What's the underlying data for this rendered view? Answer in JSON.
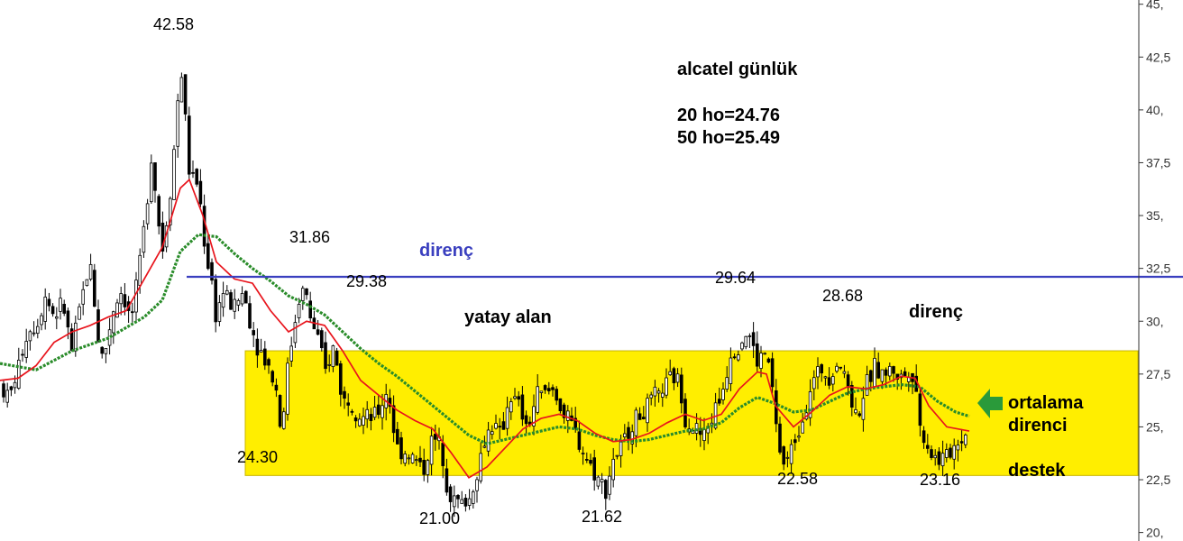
{
  "chart_data": {
    "type": "candlestick",
    "title": "alcatel günlük",
    "info_lines": [
      "20 ho=24.76",
      "50 ho=25.49"
    ],
    "y_axis": {
      "position": "right",
      "ylim": [
        19.6,
        45.2
      ],
      "ticks": [
        20,
        22.5,
        25,
        27.5,
        30,
        32.5,
        35,
        37.5,
        40,
        42.5,
        45
      ],
      "tick_labels": [
        "20,",
        "22,5",
        "25,",
        "27,5",
        "30,",
        "32,5",
        "35,",
        "37,5",
        "40,",
        "42,5",
        "45,"
      ]
    },
    "grid": false,
    "resistance_line": {
      "value": 32.1,
      "label": "direnç",
      "color": "#3a3fbf"
    },
    "range_box": {
      "top": 28.6,
      "bottom": 22.7,
      "label": "yatay alan",
      "color": "#ffee00"
    },
    "moving_averages": [
      {
        "name": "20 ho",
        "color": "#e8141c",
        "points": [
          [
            0,
            27.2
          ],
          [
            20,
            27.3
          ],
          [
            40,
            27.9
          ],
          [
            60,
            29.0
          ],
          [
            80,
            29.5
          ],
          [
            100,
            29.8
          ],
          [
            120,
            30.2
          ],
          [
            140,
            30.5
          ],
          [
            160,
            32.0
          ],
          [
            180,
            33.5
          ],
          [
            200,
            36.3
          ],
          [
            210,
            36.7
          ],
          [
            225,
            35.0
          ],
          [
            240,
            32.8
          ],
          [
            260,
            32.0
          ],
          [
            280,
            31.8
          ],
          [
            300,
            30.5
          ],
          [
            320,
            29.5
          ],
          [
            340,
            30.0
          ],
          [
            360,
            29.8
          ],
          [
            380,
            28.6
          ],
          [
            400,
            27.2
          ],
          [
            420,
            26.5
          ],
          [
            440,
            25.8
          ],
          [
            460,
            25.3
          ],
          [
            480,
            24.9
          ],
          [
            500,
            23.8
          ],
          [
            520,
            22.6
          ],
          [
            540,
            23.1
          ],
          [
            560,
            24.0
          ],
          [
            580,
            24.9
          ],
          [
            600,
            25.4
          ],
          [
            620,
            25.6
          ],
          [
            640,
            25.3
          ],
          [
            660,
            24.7
          ],
          [
            680,
            24.3
          ],
          [
            700,
            24.4
          ],
          [
            720,
            24.7
          ],
          [
            740,
            25.2
          ],
          [
            760,
            25.6
          ],
          [
            780,
            25.3
          ],
          [
            800,
            25.6
          ],
          [
            820,
            26.8
          ],
          [
            840,
            27.6
          ],
          [
            850,
            27.5
          ],
          [
            860,
            26.0
          ],
          [
            880,
            25.0
          ],
          [
            900,
            25.7
          ],
          [
            920,
            26.5
          ],
          [
            940,
            26.9
          ],
          [
            960,
            26.8
          ],
          [
            980,
            27.0
          ],
          [
            1000,
            27.4
          ],
          [
            1015,
            27.3
          ],
          [
            1030,
            26.0
          ],
          [
            1050,
            25.0
          ],
          [
            1075,
            24.8
          ]
        ]
      },
      {
        "name": "50 ho",
        "color": "#2a8c2a",
        "points": [
          [
            0,
            28.0
          ],
          [
            40,
            27.7
          ],
          [
            80,
            28.6
          ],
          [
            120,
            29.2
          ],
          [
            160,
            30.2
          ],
          [
            180,
            31.0
          ],
          [
            200,
            33.3
          ],
          [
            220,
            34.1
          ],
          [
            240,
            34.0
          ],
          [
            260,
            33.2
          ],
          [
            280,
            32.5
          ],
          [
            300,
            31.9
          ],
          [
            320,
            31.2
          ],
          [
            340,
            30.8
          ],
          [
            360,
            30.3
          ],
          [
            380,
            29.5
          ],
          [
            400,
            28.7
          ],
          [
            420,
            28.0
          ],
          [
            440,
            27.4
          ],
          [
            460,
            26.7
          ],
          [
            480,
            26.0
          ],
          [
            500,
            25.3
          ],
          [
            520,
            24.6
          ],
          [
            540,
            24.2
          ],
          [
            560,
            24.4
          ],
          [
            580,
            24.6
          ],
          [
            600,
            24.8
          ],
          [
            620,
            25.0
          ],
          [
            640,
            24.9
          ],
          [
            660,
            24.6
          ],
          [
            680,
            24.4
          ],
          [
            700,
            24.3
          ],
          [
            720,
            24.4
          ],
          [
            740,
            24.6
          ],
          [
            760,
            24.8
          ],
          [
            780,
            24.9
          ],
          [
            800,
            25.2
          ],
          [
            820,
            25.9
          ],
          [
            840,
            26.4
          ],
          [
            860,
            26.1
          ],
          [
            880,
            25.7
          ],
          [
            900,
            25.8
          ],
          [
            920,
            26.2
          ],
          [
            940,
            26.6
          ],
          [
            960,
            26.8
          ],
          [
            980,
            26.9
          ],
          [
            1000,
            27.0
          ],
          [
            1020,
            26.9
          ],
          [
            1040,
            26.2
          ],
          [
            1060,
            25.7
          ],
          [
            1075,
            25.5
          ]
        ]
      }
    ],
    "annotations": [
      {
        "text": "42.58",
        "value": 42.58
      },
      {
        "text": "31.86",
        "value": 31.86
      },
      {
        "text": "29.38",
        "value": 29.38
      },
      {
        "text": "29.64",
        "value": 29.64
      },
      {
        "text": "28.68",
        "value": 28.68
      },
      {
        "text": "24.30",
        "value": 24.3
      },
      {
        "text": "21.00",
        "value": 21.0
      },
      {
        "text": "21.62",
        "value": 21.62
      },
      {
        "text": "22.58",
        "value": 22.58
      },
      {
        "text": "23.16",
        "value": 23.16
      }
    ],
    "labels": {
      "direnc_right": "direnç",
      "ortalama": "ortalama",
      "direnci": "direnci",
      "destek": "destek"
    },
    "colors": {
      "candle": "#000000",
      "box": "#ffee00",
      "resistance": "#3a3fbf",
      "ma20": "#e8141c",
      "ma50": "#2a8c2a",
      "arrow": "#2a9a3a"
    },
    "price_path": [
      [
        0,
        27.0
      ],
      [
        10,
        26.3
      ],
      [
        20,
        27.8
      ],
      [
        30,
        29.5
      ],
      [
        40,
        29.8
      ],
      [
        50,
        31.2
      ],
      [
        60,
        30.3
      ],
      [
        70,
        30.8
      ],
      [
        80,
        28.5
      ],
      [
        90,
        31.0
      ],
      [
        100,
        32.8
      ],
      [
        110,
        28.8
      ],
      [
        115,
        28.2
      ],
      [
        125,
        30.5
      ],
      [
        135,
        31.5
      ],
      [
        145,
        30.0
      ],
      [
        152,
        31.6
      ],
      [
        160,
        34.5
      ],
      [
        168,
        38.0
      ],
      [
        175,
        35.0
      ],
      [
        180,
        33.3
      ],
      [
        187,
        35.5
      ],
      [
        195,
        39.0
      ],
      [
        200,
        42.3
      ],
      [
        205,
        40.0
      ],
      [
        210,
        37.0
      ],
      [
        220,
        36.5
      ],
      [
        228,
        33.2
      ],
      [
        234,
        32.2
      ],
      [
        240,
        30.0
      ],
      [
        246,
        31.5
      ],
      [
        252,
        31.0
      ],
      [
        260,
        30.7
      ],
      [
        270,
        31.4
      ],
      [
        280,
        29.5
      ],
      [
        290,
        28.5
      ],
      [
        300,
        27.7
      ],
      [
        308,
        26.5
      ],
      [
        312,
        24.5
      ],
      [
        318,
        27.5
      ],
      [
        325,
        29.5
      ],
      [
        332,
        31.2
      ],
      [
        338,
        31.6
      ],
      [
        345,
        30.0
      ],
      [
        352,
        29.3
      ],
      [
        360,
        27.5
      ],
      [
        370,
        28.8
      ],
      [
        380,
        26.3
      ],
      [
        390,
        26.2
      ],
      [
        400,
        25.5
      ],
      [
        410,
        25.3
      ],
      [
        420,
        25.7
      ],
      [
        430,
        26.8
      ],
      [
        440,
        24.0
      ],
      [
        450,
        23.8
      ],
      [
        460,
        23.5
      ],
      [
        470,
        23.0
      ],
      [
        480,
        24.5
      ],
      [
        490,
        24.0
      ],
      [
        497,
        22.0
      ],
      [
        505,
        21.5
      ],
      [
        512,
        21.4
      ],
      [
        520,
        21.5
      ],
      [
        528,
        22.6
      ],
      [
        535,
        24.0
      ],
      [
        545,
        25.2
      ],
      [
        555,
        24.5
      ],
      [
        565,
        26.5
      ],
      [
        575,
        26.0
      ],
      [
        585,
        24.8
      ],
      [
        595,
        26.5
      ],
      [
        605,
        26.6
      ],
      [
        615,
        26.8
      ],
      [
        625,
        25.5
      ],
      [
        635,
        25.0
      ],
      [
        645,
        24.0
      ],
      [
        655,
        23.2
      ],
      [
        665,
        22.4
      ],
      [
        672,
        22.1
      ],
      [
        680,
        23.5
      ],
      [
        690,
        24.0
      ],
      [
        700,
        25.2
      ],
      [
        710,
        25.5
      ],
      [
        720,
        26.0
      ],
      [
        730,
        26.5
      ],
      [
        740,
        27.0
      ],
      [
        750,
        27.5
      ],
      [
        760,
        25.5
      ],
      [
        770,
        25.0
      ],
      [
        780,
        24.5
      ],
      [
        790,
        25.5
      ],
      [
        800,
        26.5
      ],
      [
        810,
        28.5
      ],
      [
        820,
        29.0
      ],
      [
        830,
        29.5
      ],
      [
        840,
        28.0
      ],
      [
        848,
        28.5
      ],
      [
        855,
        27.5
      ],
      [
        862,
        24.5
      ],
      [
        868,
        23.2
      ],
      [
        875,
        23.5
      ],
      [
        882,
        24.5
      ],
      [
        890,
        25.5
      ],
      [
        900,
        27.0
      ],
      [
        910,
        27.7
      ],
      [
        920,
        27.5
      ],
      [
        930,
        28.2
      ],
      [
        940,
        27.0
      ],
      [
        950,
        25.5
      ],
      [
        960,
        26.8
      ],
      [
        970,
        27.8
      ],
      [
        980,
        27.5
      ],
      [
        990,
        27.7
      ],
      [
        1000,
        27.3
      ],
      [
        1010,
        27.8
      ],
      [
        1015,
        27.3
      ],
      [
        1020,
        25.0
      ],
      [
        1030,
        24.0
      ],
      [
        1040,
        23.4
      ],
      [
        1050,
        23.6
      ],
      [
        1060,
        24.2
      ],
      [
        1068,
        24.6
      ],
      [
        1075,
        24.8
      ]
    ]
  }
}
